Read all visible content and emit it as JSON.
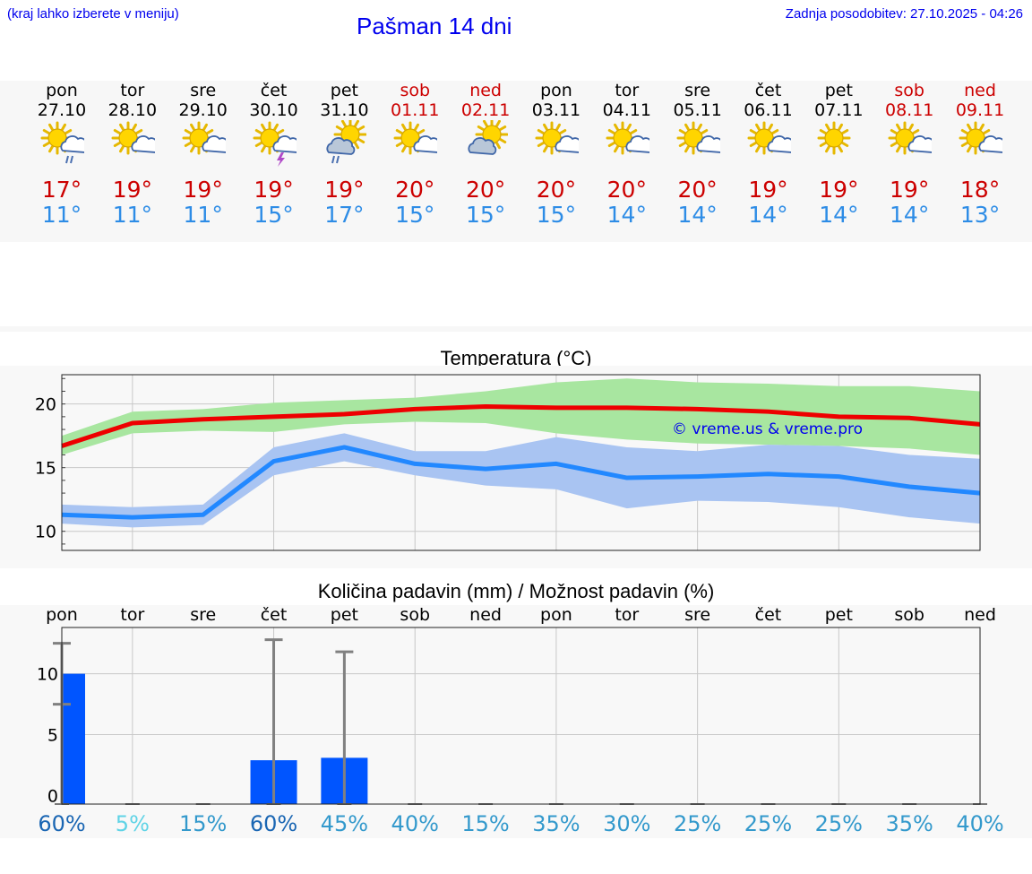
{
  "header": {
    "menu_hint": "(kraj lahko izberete v meniju)",
    "title": "Pašman 14 dni",
    "updated": "Zadnja posodobitev: 27.10.2025 - 04:26"
  },
  "colors": {
    "link": "#0000ee",
    "max_temp": "#cc0000",
    "min_temp": "#2d8ce6",
    "max_band": "#a8e6a0",
    "min_band": "#a9c4f2",
    "precip_bar": "#0055ff"
  },
  "days": [
    {
      "name": "pon",
      "date": "27.10",
      "tmax": "17°",
      "tmin": "11°",
      "icon": "sun-cloud-rain-icon",
      "weekend": false
    },
    {
      "name": "tor",
      "date": "28.10",
      "tmax": "19°",
      "tmin": "11°",
      "icon": "sun-cloud-icon",
      "weekend": false
    },
    {
      "name": "sre",
      "date": "29.10",
      "tmax": "19°",
      "tmin": "11°",
      "icon": "sun-cloud-icon",
      "weekend": false
    },
    {
      "name": "čet",
      "date": "30.10",
      "tmax": "19°",
      "tmin": "15°",
      "icon": "sun-cloud-thunder-icon",
      "weekend": false
    },
    {
      "name": "pet",
      "date": "31.10",
      "tmax": "19°",
      "tmin": "17°",
      "icon": "cloud-sun-rain-icon",
      "weekend": false
    },
    {
      "name": "sob",
      "date": "01.11",
      "tmax": "20°",
      "tmin": "15°",
      "icon": "sun-cloud-icon",
      "weekend": true
    },
    {
      "name": "ned",
      "date": "02.11",
      "tmax": "20°",
      "tmin": "15°",
      "icon": "cloud-sun-icon",
      "weekend": true
    },
    {
      "name": "pon",
      "date": "03.11",
      "tmax": "20°",
      "tmin": "15°",
      "icon": "sun-cloud-icon",
      "weekend": false
    },
    {
      "name": "tor",
      "date": "04.11",
      "tmax": "20°",
      "tmin": "14°",
      "icon": "sun-cloud-icon",
      "weekend": false
    },
    {
      "name": "sre",
      "date": "05.11",
      "tmax": "20°",
      "tmin": "14°",
      "icon": "sun-cloud-icon",
      "weekend": false
    },
    {
      "name": "čet",
      "date": "06.11",
      "tmax": "19°",
      "tmin": "14°",
      "icon": "sun-cloud-icon",
      "weekend": false
    },
    {
      "name": "pet",
      "date": "07.11",
      "tmax": "19°",
      "tmin": "14°",
      "icon": "sun-icon",
      "weekend": false
    },
    {
      "name": "sob",
      "date": "08.11",
      "tmax": "19°",
      "tmin": "14°",
      "icon": "sun-cloud-icon",
      "weekend": true
    },
    {
      "name": "ned",
      "date": "09.11",
      "tmax": "18°",
      "tmin": "13°",
      "icon": "sun-cloud-icon",
      "weekend": true
    }
  ],
  "chart_data": [
    {
      "type": "line",
      "title": "Temperatura (°C)",
      "watermark": "© vreme.us & vreme.pro",
      "ylim": [
        8.5,
        22.3
      ],
      "yticks": [
        "10",
        "15",
        "20"
      ],
      "ytick_values": [
        10,
        15,
        20
      ],
      "grid": true,
      "x": [
        0,
        1,
        2,
        3,
        4,
        5,
        6,
        7,
        8,
        9,
        10,
        11,
        12,
        13
      ],
      "series": [
        {
          "values": [
            16.7,
            18.5,
            18.8,
            19.0,
            19.2,
            19.6,
            19.8,
            19.7,
            19.7,
            19.6,
            19.4,
            19.0,
            18.9,
            18.4
          ]
        },
        {
          "values": [
            11.3,
            11.1,
            11.3,
            15.5,
            16.6,
            15.3,
            14.9,
            15.3,
            14.2,
            14.3,
            14.5,
            14.3,
            13.5,
            13.0
          ]
        }
      ],
      "bands": [
        {
          "upper": [
            17.5,
            19.4,
            19.6,
            20.1,
            20.3,
            20.5,
            21.0,
            21.7,
            22.0,
            21.7,
            21.6,
            21.4,
            21.4,
            21.0
          ],
          "lower": [
            16.0,
            17.7,
            17.9,
            17.8,
            18.4,
            18.6,
            18.5,
            17.7,
            17.2,
            16.9,
            16.8,
            16.7,
            16.5,
            16.0
          ]
        },
        {
          "upper": [
            12.1,
            11.9,
            12.1,
            16.6,
            17.7,
            16.3,
            16.3,
            17.4,
            16.6,
            16.3,
            16.8,
            16.7,
            16.0,
            15.7
          ],
          "lower": [
            10.6,
            10.3,
            10.5,
            14.4,
            15.5,
            14.4,
            13.6,
            13.3,
            11.8,
            12.4,
            12.3,
            11.9,
            11.1,
            10.6
          ]
        }
      ]
    },
    {
      "type": "bar",
      "title": "Količina padavin (mm) / Možnost padavin (%)",
      "categories": [
        "pon",
        "tor",
        "sre",
        "čet",
        "pet",
        "sob",
        "ned",
        "pon",
        "tor",
        "sre",
        "čet",
        "pet",
        "sob",
        "ned"
      ],
      "values": [
        10.0,
        0,
        0,
        2.9,
        3.1,
        0,
        0,
        0,
        0,
        0,
        0,
        0,
        0,
        0
      ],
      "error_high": [
        12.5,
        0,
        0,
        12.8,
        11.8,
        0,
        0,
        0,
        0,
        0,
        0,
        0,
        0,
        0
      ],
      "error_low": [
        7.5,
        0,
        0,
        0,
        0,
        0,
        0,
        0,
        0,
        0,
        0,
        0,
        0,
        0
      ],
      "ylim": [
        -0.7,
        13.8
      ],
      "yticks": [
        "0",
        "5",
        "10"
      ],
      "ytick_values": [
        0,
        5,
        10
      ],
      "grid": true,
      "probability": [
        "60%",
        "5%",
        "15%",
        "60%",
        "45%",
        "40%",
        "15%",
        "35%",
        "30%",
        "25%",
        "25%",
        "25%",
        "35%",
        "40%"
      ],
      "probability_values": [
        60,
        5,
        15,
        60,
        45,
        40,
        15,
        35,
        30,
        25,
        25,
        25,
        35,
        40
      ]
    }
  ]
}
